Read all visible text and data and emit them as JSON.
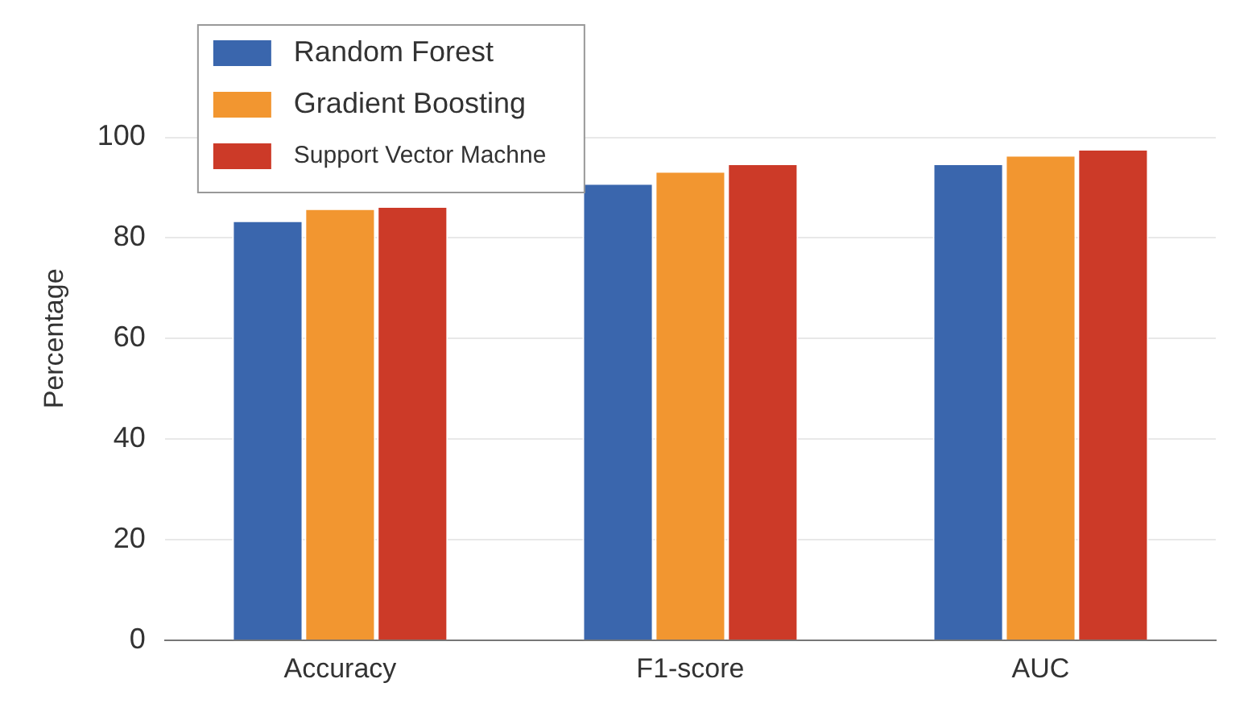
{
  "chart_data": {
    "type": "bar",
    "ylabel": "Percentage",
    "categories": [
      "Accuracy",
      "F1-score",
      "AUC"
    ],
    "series": [
      {
        "name": "Random Forest",
        "color": "#3a66ad",
        "values": [
          83.2,
          90.6,
          94.5
        ]
      },
      {
        "name": "Gradient Boosting",
        "color": "#f29630",
        "values": [
          85.6,
          93.0,
          96.2
        ]
      },
      {
        "name": "Support Vector Machne",
        "color": "#cc3a28",
        "values": [
          86.0,
          94.5,
          97.4
        ]
      }
    ],
    "ylim": [
      0,
      120
    ],
    "yticks": [
      0,
      20,
      40,
      60,
      80,
      100
    ],
    "grid": "y",
    "legend": "top left"
  }
}
